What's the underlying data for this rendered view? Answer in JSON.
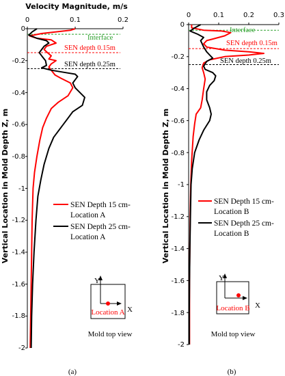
{
  "chart_data": [
    {
      "type": "line",
      "panel_label": "(a)",
      "title": "Velocity Magnitude, m/s",
      "ylabel": "Vertical Location in Mold Depth Z, m",
      "xlim": [
        0,
        0.2
      ],
      "ylim": [
        -2,
        0
      ],
      "x_ticks": [
        "0",
        "0.1",
        "0.2"
      ],
      "y_ticks": [
        "0",
        "-0.2",
        "-0.4",
        "-0.6",
        "-0.8",
        "-1",
        "-1.2",
        "-1.4",
        "-1.6",
        "-1.8",
        "-2"
      ],
      "annotations": [
        {
          "text": "Interface",
          "z": -0.035,
          "color": "#2ca02c"
        },
        {
          "text": "SEN depth 0.15m",
          "z": -0.15,
          "color": "#ff0000"
        },
        {
          "text": "SEN depth 0.25m",
          "z": -0.25,
          "color": "#000000"
        }
      ],
      "series": [
        {
          "name": "SEN Depth 15 cm-Location A",
          "color": "#ff0000",
          "points": [
            [
              0.1,
              0
            ],
            [
              0.09,
              -0.01
            ],
            [
              0.03,
              -0.03
            ],
            [
              0.005,
              -0.045
            ],
            [
              0.02,
              -0.06
            ],
            [
              0.05,
              -0.07
            ],
            [
              0.06,
              -0.09
            ],
            [
              0.04,
              -0.11
            ],
            [
              0.035,
              -0.13
            ],
            [
              0.042,
              -0.15
            ],
            [
              0.05,
              -0.17
            ],
            [
              0.045,
              -0.19
            ],
            [
              0.06,
              -0.2
            ],
            [
              0.05,
              -0.22
            ],
            [
              0.045,
              -0.24
            ],
            [
              0.05,
              -0.26
            ],
            [
              0.058,
              -0.29
            ],
            [
              0.07,
              -0.31
            ],
            [
              0.09,
              -0.34
            ],
            [
              0.095,
              -0.37
            ],
            [
              0.085,
              -0.42
            ],
            [
              0.065,
              -0.46
            ],
            [
              0.05,
              -0.5
            ],
            [
              0.04,
              -0.56
            ],
            [
              0.032,
              -0.62
            ],
            [
              0.026,
              -0.7
            ],
            [
              0.02,
              -0.8
            ],
            [
              0.015,
              -0.9
            ],
            [
              0.012,
              -1.0
            ],
            [
              0.01,
              -1.2
            ],
            [
              0.009,
              -1.4
            ],
            [
              0.008,
              -1.6
            ],
            [
              0.007,
              -1.8
            ],
            [
              0.006,
              -2.0
            ]
          ]
        },
        {
          "name": "SEN Depth 25 cm-Location A",
          "color": "#000000",
          "points": [
            [
              0.02,
              0
            ],
            [
              0.01,
              -0.02
            ],
            [
              0.003,
              -0.04
            ],
            [
              0.02,
              -0.06
            ],
            [
              0.04,
              -0.075
            ],
            [
              0.045,
              -0.09
            ],
            [
              0.035,
              -0.11
            ],
            [
              0.03,
              -0.13
            ],
            [
              0.025,
              -0.15
            ],
            [
              0.03,
              -0.17
            ],
            [
              0.038,
              -0.2
            ],
            [
              0.04,
              -0.23
            ],
            [
              0.03,
              -0.245
            ],
            [
              0.05,
              -0.26
            ],
            [
              0.08,
              -0.275
            ],
            [
              0.1,
              -0.285
            ],
            [
              0.105,
              -0.3
            ],
            [
              0.1,
              -0.32
            ],
            [
              0.095,
              -0.34
            ],
            [
              0.1,
              -0.37
            ],
            [
              0.11,
              -0.4
            ],
            [
              0.12,
              -0.43
            ],
            [
              0.115,
              -0.48
            ],
            [
              0.095,
              -0.52
            ],
            [
              0.085,
              -0.56
            ],
            [
              0.07,
              -0.62
            ],
            [
              0.055,
              -0.68
            ],
            [
              0.045,
              -0.75
            ],
            [
              0.035,
              -0.85
            ],
            [
              0.028,
              -0.95
            ],
            [
              0.022,
              -1.05
            ],
            [
              0.018,
              -1.2
            ],
            [
              0.014,
              -1.4
            ],
            [
              0.011,
              -1.6
            ],
            [
              0.009,
              -1.8
            ],
            [
              0.008,
              -2.0
            ]
          ]
        }
      ],
      "inset": {
        "axis_y": "Y",
        "axis_x": "X",
        "location_label": "Location A",
        "caption": "Mold top view"
      }
    },
    {
      "type": "line",
      "panel_label": "(b)",
      "title": "",
      "ylabel": "Vertical Location in Mold Depth Z, m",
      "xlim": [
        0,
        0.3
      ],
      "ylim": [
        -2,
        0
      ],
      "x_ticks": [
        "0",
        "0.1",
        "0.2",
        "0.3"
      ],
      "y_ticks": [
        "0",
        "-0.2",
        "-0.4",
        "-0.6",
        "-0.8",
        "-1",
        "-1.2",
        "-1.4",
        "-1.6",
        "-1.8",
        "-2"
      ],
      "annotations": [
        {
          "text": "Interface",
          "z": -0.035,
          "color": "#2ca02c"
        },
        {
          "text": "SEN depth 0.15m",
          "z": -0.15,
          "color": "#ff0000"
        },
        {
          "text": "SEN depth 0.25m",
          "z": -0.25,
          "color": "#000000"
        }
      ],
      "series": [
        {
          "name": "SEN Depth 15 cm-Location B",
          "color": "#ff0000",
          "points": [
            [
              0.01,
              0
            ],
            [
              0.01,
              -0.02
            ],
            [
              0.05,
              -0.035
            ],
            [
              0.11,
              -0.04
            ],
            [
              0.14,
              -0.05
            ],
            [
              0.12,
              -0.07
            ],
            [
              0.08,
              -0.09
            ],
            [
              0.06,
              -0.1
            ],
            [
              0.05,
              -0.12
            ],
            [
              0.06,
              -0.14
            ],
            [
              0.12,
              -0.16
            ],
            [
              0.2,
              -0.17
            ],
            [
              0.25,
              -0.18
            ],
            [
              0.2,
              -0.19
            ],
            [
              0.12,
              -0.2
            ],
            [
              0.07,
              -0.22
            ],
            [
              0.05,
              -0.24
            ],
            [
              0.045,
              -0.27
            ],
            [
              0.05,
              -0.3
            ],
            [
              0.055,
              -0.34
            ],
            [
              0.05,
              -0.4
            ],
            [
              0.045,
              -0.47
            ],
            [
              0.04,
              -0.52
            ],
            [
              0.025,
              -0.56
            ],
            [
              0.02,
              -0.62
            ],
            [
              0.015,
              -0.7
            ],
            [
              0.01,
              -0.85
            ],
            [
              0.007,
              -1.0
            ],
            [
              0.005,
              -1.2
            ],
            [
              0.004,
              -1.4
            ],
            [
              0.003,
              -1.6
            ],
            [
              0.003,
              -1.8
            ],
            [
              0.003,
              -2.0
            ]
          ]
        },
        {
          "name": "SEN Depth 25 cm-Location B",
          "color": "#000000",
          "points": [
            [
              0.04,
              0
            ],
            [
              0.02,
              -0.02
            ],
            [
              0.005,
              -0.04
            ],
            [
              0.03,
              -0.06
            ],
            [
              0.05,
              -0.08
            ],
            [
              0.04,
              -0.1
            ],
            [
              0.045,
              -0.12
            ],
            [
              0.05,
              -0.14
            ],
            [
              0.06,
              -0.17
            ],
            [
              0.07,
              -0.19
            ],
            [
              0.08,
              -0.21
            ],
            [
              0.06,
              -0.23
            ],
            [
              0.05,
              -0.26
            ],
            [
              0.055,
              -0.28
            ],
            [
              0.08,
              -0.3
            ],
            [
              0.09,
              -0.32
            ],
            [
              0.085,
              -0.35
            ],
            [
              0.07,
              -0.38
            ],
            [
              0.06,
              -0.42
            ],
            [
              0.06,
              -0.47
            ],
            [
              0.07,
              -0.52
            ],
            [
              0.075,
              -0.56
            ],
            [
              0.07,
              -0.6
            ],
            [
              0.05,
              -0.66
            ],
            [
              0.035,
              -0.72
            ],
            [
              0.02,
              -0.8
            ],
            [
              0.012,
              -0.9
            ],
            [
              0.008,
              -1.0
            ],
            [
              0.006,
              -1.2
            ],
            [
              0.004,
              -1.4
            ],
            [
              0.003,
              -1.6
            ],
            [
              0.002,
              -1.8
            ],
            [
              0.002,
              -2.0
            ]
          ]
        }
      ],
      "inset": {
        "axis_y": "Y",
        "axis_x": "X",
        "location_label": "Location B",
        "caption": "Mold top view"
      }
    }
  ]
}
